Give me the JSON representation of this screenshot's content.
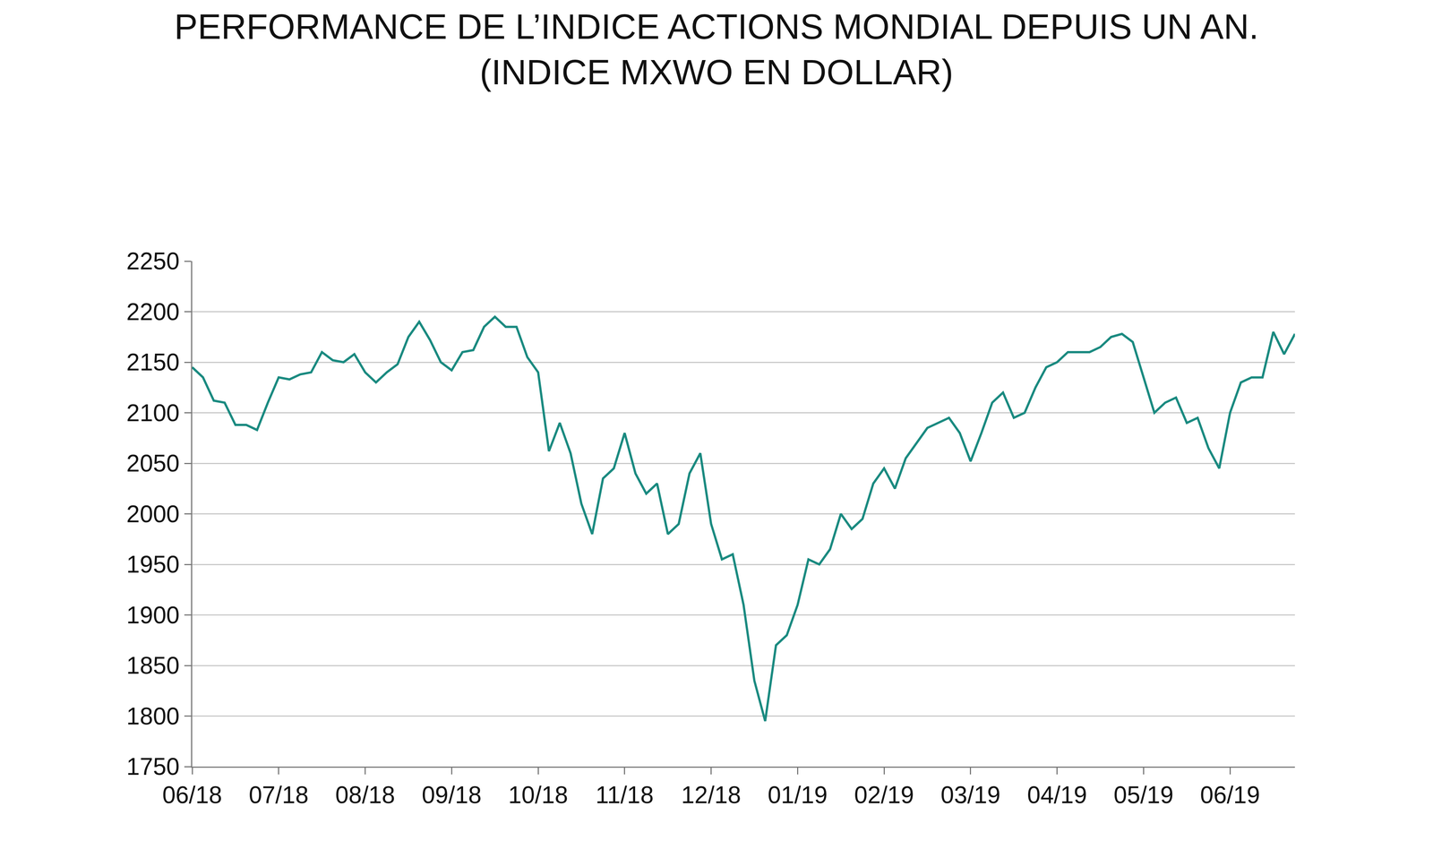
{
  "chart_data": {
    "type": "line",
    "title": "PERFORMANCE DE L’INDICE ACTIONS MONDIAL DEPUIS UN AN.",
    "subtitle": "(INDICE MXWO EN DOLLAR)",
    "categories": [
      "06/18",
      null,
      null,
      null,
      null,
      null,
      null,
      null,
      "07/18",
      null,
      null,
      null,
      null,
      null,
      null,
      null,
      "08/18",
      null,
      null,
      null,
      null,
      null,
      null,
      null,
      "09/18",
      null,
      null,
      null,
      null,
      null,
      null,
      null,
      "10/18",
      null,
      null,
      null,
      null,
      null,
      null,
      null,
      "11/18",
      null,
      null,
      null,
      null,
      null,
      null,
      null,
      "12/18",
      null,
      null,
      null,
      null,
      null,
      null,
      null,
      "01/19",
      null,
      null,
      null,
      null,
      null,
      null,
      null,
      "02/19",
      null,
      null,
      null,
      null,
      null,
      null,
      null,
      "03/19",
      null,
      null,
      null,
      null,
      null,
      null,
      null,
      "04/19",
      null,
      null,
      null,
      null,
      null,
      null,
      null,
      "05/19",
      null,
      null,
      null,
      null,
      null,
      null,
      null,
      "06/19",
      null,
      null,
      null,
      null,
      null,
      null
    ],
    "values": [
      2145,
      2135,
      2112,
      2110,
      2088,
      2088,
      2083,
      2110,
      2135,
      2133,
      2138,
      2140,
      2160,
      2152,
      2150,
      2158,
      2140,
      2130,
      2140,
      2148,
      2175,
      2190,
      2172,
      2150,
      2142,
      2160,
      2162,
      2185,
      2195,
      2185,
      2185,
      2155,
      2140,
      2062,
      2090,
      2060,
      2010,
      1980,
      2035,
      2045,
      2080,
      2040,
      2020,
      2030,
      1980,
      1990,
      2040,
      2060,
      1990,
      1955,
      1960,
      1910,
      1835,
      1795,
      1870,
      1880,
      1910,
      1955,
      1950,
      1965,
      2000,
      1985,
      1995,
      2030,
      2045,
      2025,
      2055,
      2070,
      2085,
      2090,
      2095,
      2080,
      2052,
      2080,
      2110,
      2120,
      2095,
      2100,
      2125,
      2145,
      2150,
      2160,
      2160,
      2160,
      2165,
      2175,
      2178,
      2170,
      2135,
      2100,
      2110,
      2115,
      2090,
      2095,
      2065,
      2045,
      2100,
      2130,
      2135,
      2135,
      2180,
      2158,
      2178
    ],
    "color": "#1a8a80",
    "ylim": [
      1750,
      2250
    ],
    "yticks": [
      1750,
      1800,
      1850,
      1900,
      1950,
      2000,
      2050,
      2100,
      2150,
      2200,
      2250
    ],
    "grid": true
  }
}
